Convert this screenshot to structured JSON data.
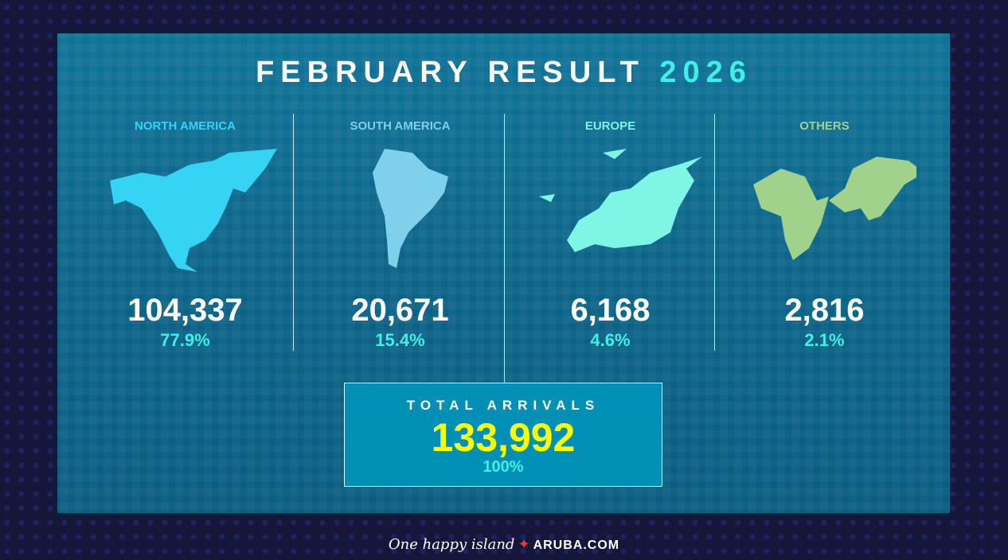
{
  "header": {
    "title": "FEBRUARY RESULT",
    "year": "2026"
  },
  "regions": [
    {
      "name": "NORTH AMERICA",
      "arrivals": "104,337",
      "percent": "77.9%",
      "color": "#35d4f5",
      "icon": "north-america-map"
    },
    {
      "name": "SOUTH AMERICA",
      "arrivals": "20,671",
      "percent": "15.4%",
      "color": "#7fd0ea",
      "icon": "south-america-map"
    },
    {
      "name": "EUROPE",
      "arrivals": "6,168",
      "percent": "4.6%",
      "color": "#7ff5e6",
      "icon": "europe-map"
    },
    {
      "name": "OTHERS",
      "arrivals": "2,816",
      "percent": "2.1%",
      "color": "#a0d28c",
      "icon": "africa-asia-map"
    }
  ],
  "total": {
    "label": "TOTAL ARRIVALS",
    "arrivals": "133,992",
    "percent": "100%"
  },
  "footer": {
    "tagline": "One happy island",
    "site": "ARUBA.COM"
  },
  "colors": {
    "accent": "#3ef0e6",
    "total": "#ffff00",
    "background": "#16163a"
  }
}
